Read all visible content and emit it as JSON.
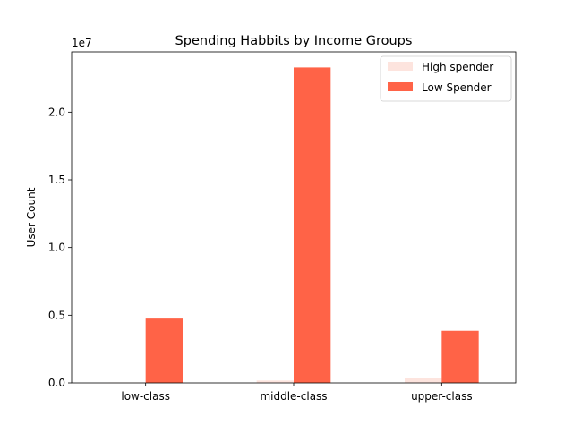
{
  "chart_data": {
    "type": "bar",
    "title": "Spending Habbits by Income Groups",
    "xlabel": "",
    "ylabel": "User Count",
    "scale_label": "1e7",
    "categories": [
      "low-class",
      "middle-class",
      "upper-class"
    ],
    "series": [
      {
        "name": "High spender",
        "color": "#fde4de",
        "values": [
          25000,
          180000,
          370000
        ]
      },
      {
        "name": "Low Spender",
        "color": "#ff6347",
        "values": [
          4750000,
          23300000,
          3850000
        ]
      }
    ],
    "ylim": [
      0,
      24450000
    ],
    "yticks": [
      0,
      5000000,
      10000000,
      15000000,
      20000000
    ],
    "ytick_labels": [
      "0.0",
      "0.5",
      "1.0",
      "1.5",
      "2.0"
    ],
    "grid": false,
    "legend_position": "top-right"
  }
}
